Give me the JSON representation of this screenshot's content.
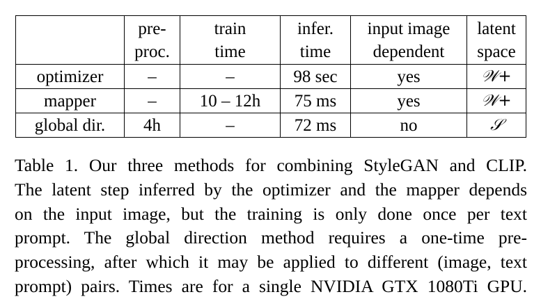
{
  "table": {
    "header": [
      [],
      [
        "pre-",
        "proc."
      ],
      [
        "train",
        "time"
      ],
      [
        "infer.",
        "time"
      ],
      [
        "input image",
        "dependent"
      ],
      [
        "latent",
        "space"
      ]
    ],
    "rows": [
      [
        "optimizer",
        "–",
        "–",
        "98 sec",
        "yes",
        "𝒲+"
      ],
      [
        "mapper",
        "–",
        "10 – 12h",
        "75 ms",
        "yes",
        "𝒲+"
      ],
      [
        "global dir.",
        "4h",
        "–",
        "72 ms",
        "no",
        "𝒮"
      ]
    ]
  },
  "caption": {
    "lines": [
      "Table 1.  Our three methods for combining StyleGAN and CLIP.",
      "The latent step inferred by the optimizer and the mapper depends",
      "on the input image, but the training is only done once per text",
      "prompt.  The global direction method requires a one-time pre-",
      "processing, after which it may be applied to different (image, text",
      "prompt) pairs. Times are for a single NVIDIA GTX 1080Ti GPU."
    ]
  }
}
